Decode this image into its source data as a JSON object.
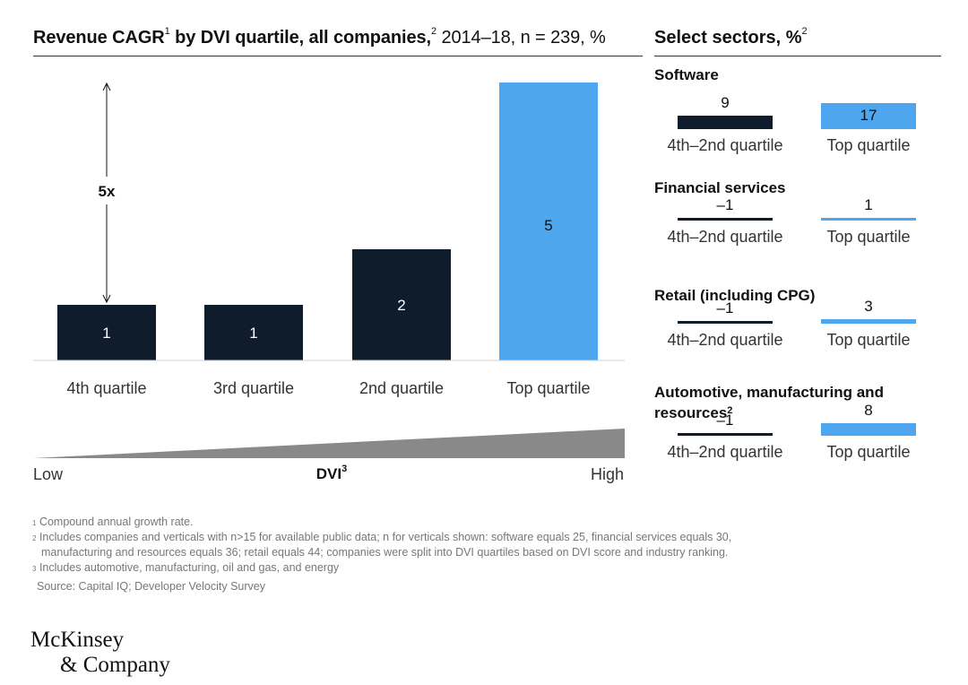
{
  "header": {
    "title_bold": "Revenue CAGR",
    "title_sup1": "1",
    "title_bold2": " by DVI quartile, all companies,",
    "title_sup2": "2",
    "title_rest": " 2014–18, n = 239, %",
    "right_title": "Select sectors, %",
    "right_title_sup": "2"
  },
  "chart_data": [
    {
      "type": "bar",
      "title": "Revenue CAGR by DVI quartile, all companies, 2014–18, n = 239, %",
      "categories": [
        "4th quartile",
        "3rd quartile",
        "2nd quartile",
        "Top quartile"
      ],
      "values": [
        1,
        1,
        2,
        5
      ],
      "ylim": [
        0,
        5
      ],
      "annotation": "5x",
      "axis_label": "DVI",
      "axis_label_sup": "3",
      "axis_low": "Low",
      "axis_high": "High",
      "colors": [
        "#0f1c2c",
        "#0f1c2c",
        "#0f1c2c",
        "#4da6ee"
      ]
    },
    {
      "type": "bar",
      "title": "Software",
      "categories": [
        "4th–2nd quartile",
        "Top quartile"
      ],
      "values": [
        9,
        17
      ]
    },
    {
      "type": "bar",
      "title": "Financial services",
      "categories": [
        "4th–2nd quartile",
        "Top quartile"
      ],
      "values": [
        -1,
        1
      ]
    },
    {
      "type": "bar",
      "title": "Retail (including CPG)",
      "categories": [
        "4th–2nd quartile",
        "Top quartile"
      ],
      "values": [
        -1,
        3
      ]
    },
    {
      "type": "bar",
      "title": "Automotive, manufacturing and resources",
      "title_sup": "2",
      "categories": [
        "4th–2nd quartile",
        "Top quartile"
      ],
      "values": [
        -1,
        8
      ]
    }
  ],
  "sectors": [
    {
      "label": "Software",
      "sup": "",
      "low_label": "9",
      "top_label": "17"
    },
    {
      "label": "Financial services",
      "sup": "",
      "low_label": "–1",
      "top_label": "1"
    },
    {
      "label": "Retail (including CPG)",
      "sup": "",
      "low_label": "–1",
      "top_label": "3"
    },
    {
      "label": "Automotive, manufacturing and resources",
      "sup": "2",
      "low_label": "–1",
      "top_label": "8"
    }
  ],
  "sector_captions": {
    "low": "4th–2nd quartile",
    "top": "Top quartile"
  },
  "footnotes": [
    {
      "mark": "1",
      "text": "Compound annual growth rate."
    },
    {
      "mark": "2",
      "text": "Includes companies and verticals with n>15 for available public data; n for verticals shown: software equals 25, financial services equals 30,"
    },
    {
      "mark": "",
      "text": "manufacturing and resources equals 36; retail equals 44; companies were split into DVI quartiles based on DVI score and industry ranking."
    },
    {
      "mark": "3",
      "text": "Includes automotive, manufacturing, oil and gas, and energy"
    }
  ],
  "source": "Source: Capital IQ; Developer Velocity Survey",
  "logo": {
    "line1": "McKinsey",
    "line2": "& Company"
  },
  "colors": {
    "dark": "#0f1c2c",
    "accent": "#4da6ee",
    "ramp": "#898989"
  }
}
